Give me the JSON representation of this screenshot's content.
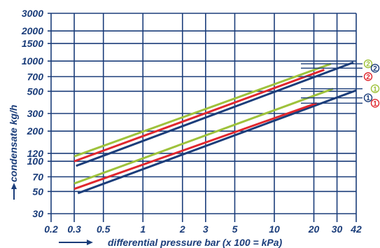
{
  "chart_data": {
    "type": "line",
    "xlabel": "differential pressure bar (x 100 = kPa)",
    "ylabel": "condensate kg/h",
    "x_scale": "log",
    "y_scale": "log",
    "xlim": [
      0.2,
      42
    ],
    "ylim": [
      30,
      3000
    ],
    "x_ticks": [
      0.2,
      0.3,
      0.5,
      1,
      2,
      3,
      5,
      10,
      20,
      30,
      42
    ],
    "x_tick_labels": [
      "0.2",
      "0.3",
      "0.5",
      "1",
      "2",
      "3",
      "5",
      "10",
      "20",
      "30",
      "42"
    ],
    "y_ticks": [
      30,
      50,
      70,
      100,
      120,
      200,
      300,
      500,
      700,
      1000,
      1500,
      2000,
      3000
    ],
    "y_tick_labels": [
      "30",
      "50",
      "70",
      "100",
      "120",
      "200",
      "300",
      "500",
      "700",
      "1000",
      "1500",
      "2000",
      "3000"
    ],
    "grid": true,
    "series": [
      {
        "marker": "1",
        "color": "#1b3d7a",
        "x": [
          0.32,
          42
        ],
        "y": [
          48,
          510
        ]
      },
      {
        "marker": "1",
        "color": "#e0272e",
        "x": [
          0.3,
          21
        ],
        "y": [
          53,
          380
        ]
      },
      {
        "marker": "1",
        "color": "#9ec23b",
        "x": [
          0.3,
          28
        ],
        "y": [
          60,
          530
        ]
      },
      {
        "marker": "2",
        "color": "#1b3d7a",
        "x": [
          0.31,
          40
        ],
        "y": [
          90,
          970
        ]
      },
      {
        "marker": "2",
        "color": "#e0272e",
        "x": [
          0.3,
          24
        ],
        "y": [
          100,
          820
        ]
      },
      {
        "marker": "2",
        "color": "#9ec23b",
        "x": [
          0.3,
          27
        ],
        "y": [
          112,
          940
        ]
      }
    ],
    "markers": [
      {
        "label": "2",
        "color": "#9ec23b"
      },
      {
        "label": "2",
        "color": "#1b3d7a"
      },
      {
        "label": "2",
        "color": "#e0272e"
      },
      {
        "label": "1",
        "color": "#9ec23b"
      },
      {
        "label": "1",
        "color": "#1b3d7a"
      },
      {
        "label": "1",
        "color": "#e0272e"
      }
    ],
    "marker_line_levels": [
      940,
      850,
      700,
      530,
      430,
      380
    ]
  }
}
